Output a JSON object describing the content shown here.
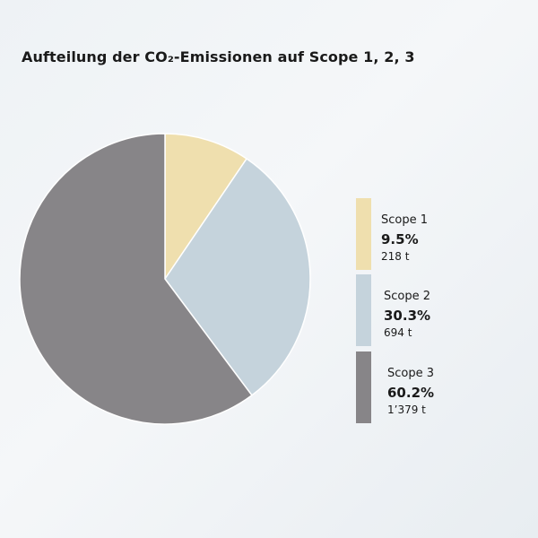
{
  "chart_data": {
    "type": "pie",
    "title": "Aufteilung der CO₂-Emissionen auf Scope 1, 2, 3",
    "categories": [
      "Scope 1",
      "Scope 2",
      "Scope 3"
    ],
    "values": [
      9.5,
      30.3,
      60.2
    ],
    "value_labels": [
      "9.5%",
      "30.3%",
      "60.2%"
    ],
    "amounts": [
      "218 t",
      "694 t",
      "1’379 t"
    ],
    "colors": [
      "#efdfae",
      "#c5d3dc",
      "#878588"
    ],
    "legend_position": "right",
    "start_angle": "12 o'clock, clockwise"
  }
}
